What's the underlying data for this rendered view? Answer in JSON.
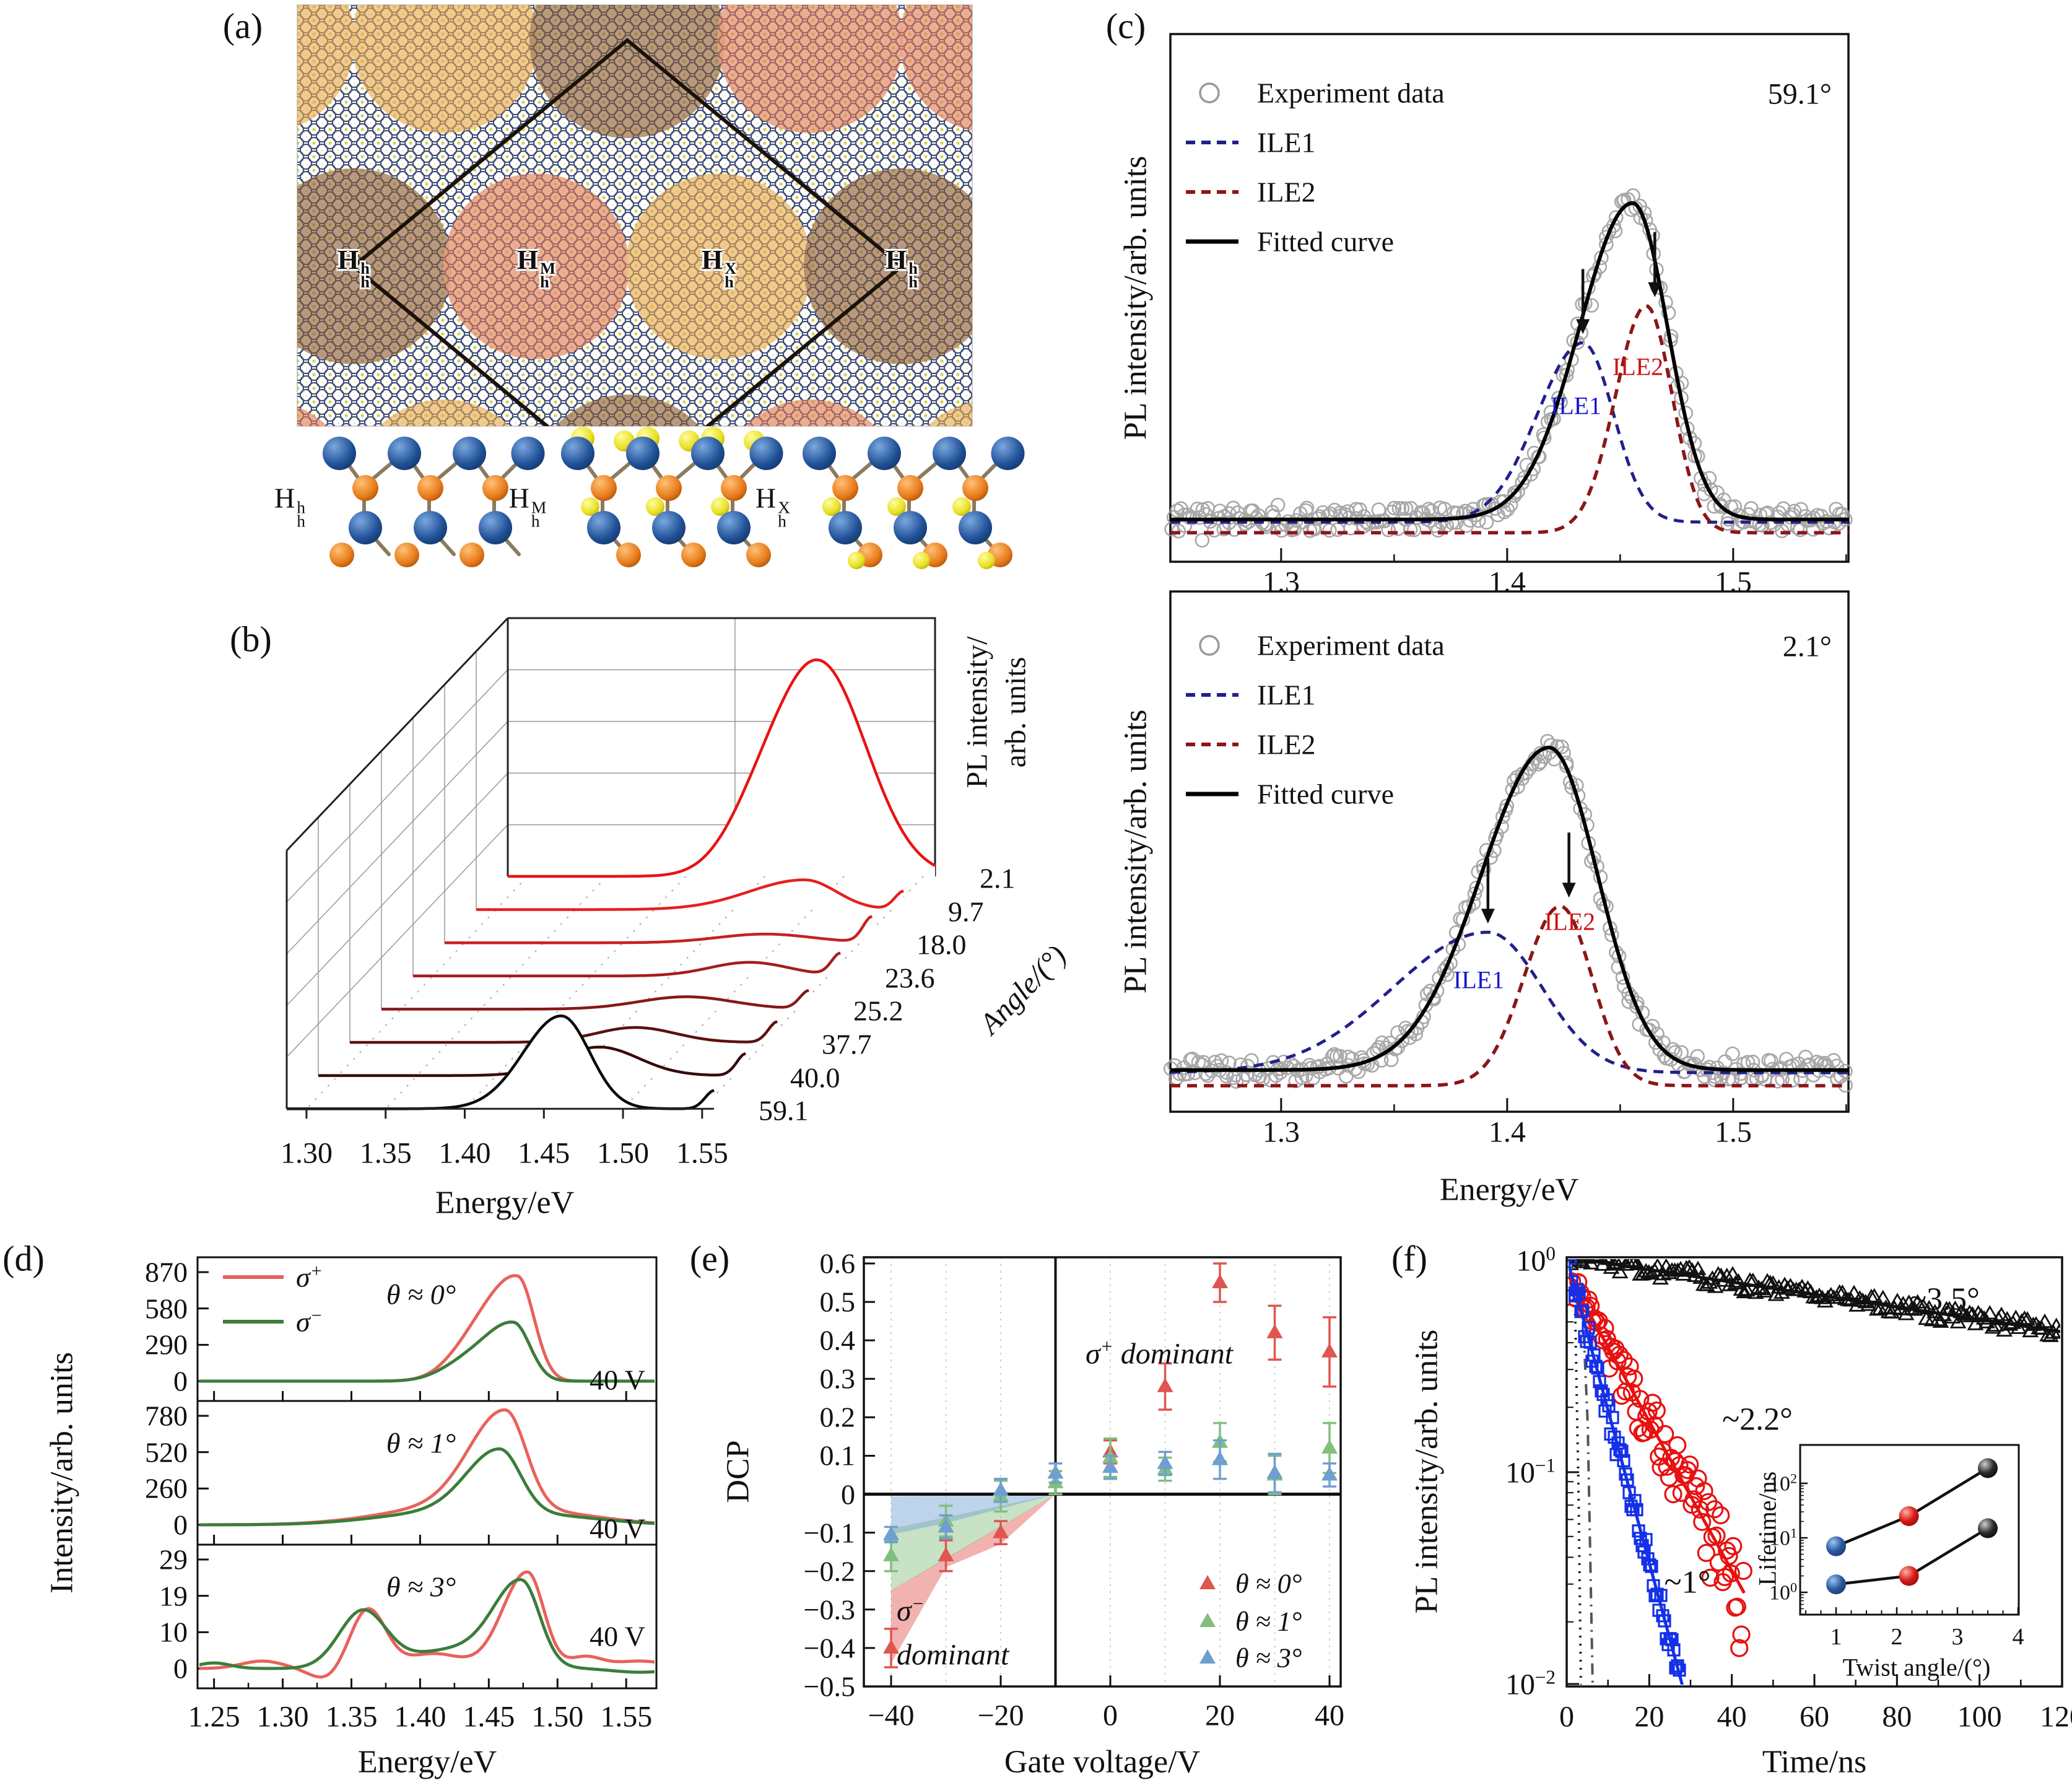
{
  "figure": {
    "panel_labels": [
      "(a)",
      "(b)",
      "(c)",
      "(d)",
      "(e)",
      "(f)"
    ]
  },
  "colors": {
    "brown": "#8a5a30",
    "salmon": "#e07a52",
    "gold": "#e8a84a",
    "ball_blue": "#1f5096",
    "ball_orange": "#e87a18",
    "ball_yellow": "#ece81f",
    "ile1": "#20208c",
    "ile2": "#8c1616",
    "fit": "#000000",
    "expt": "#9a9a9a",
    "sigma_plus": "#e8625c",
    "sigma_minus": "#3b7d3b",
    "dcp_red": "#e0554f",
    "dcp_green": "#82bf7e",
    "dcp_blue": "#6f9fd0",
    "decay_black": "#111111",
    "decay_red": "#e81010",
    "decay_blue": "#1430e8"
  },
  "panel_a": {
    "regions": [
      {
        "base": "H",
        "sup": "h",
        "sub": "h"
      },
      {
        "base": "H",
        "sup": "M",
        "sub": "h"
      },
      {
        "base": "H",
        "sup": "X",
        "sub": "h"
      },
      {
        "base": "H",
        "sup": "h",
        "sub": "h"
      }
    ],
    "structures": [
      {
        "base": "H",
        "sup": "h",
        "sub": "h"
      },
      {
        "base": "H",
        "sup": "M",
        "sub": "h"
      },
      {
        "base": "H",
        "sup": "X",
        "sub": "h"
      }
    ]
  },
  "chart_data": [
    {
      "id": "waterfall",
      "type": "line",
      "xlabel": "Energy/eV",
      "ylabel": "Angle/(°)",
      "zlabel_line1": "PL intensity/",
      "zlabel_line2": "arb. units",
      "x_ticks": [
        "1.30",
        "1.35",
        "1.40",
        "1.45",
        "1.50",
        "1.55"
      ],
      "xlim": [
        1.2875,
        1.5575
      ],
      "series": [
        {
          "angle": "2.1",
          "color": "#ea1212",
          "peaks": [
            {
              "A": 345,
              "c": 1.484,
              "s": 0.03
            },
            {
              "A": 40,
              "c": 1.442,
              "s": 0.02
            }
          ]
        },
        {
          "angle": "9.7",
          "color": "#e42020",
          "peaks": [
            {
              "A": 48,
              "c": 1.495,
              "sL": 0.035,
              "sR": 0.02
            },
            {
              "A": 30,
              "c": 1.558,
              "s": 0.006
            }
          ]
        },
        {
          "angle": "18.0",
          "color": "#c62020",
          "peaks": [
            {
              "A": 14,
              "c": 1.49,
              "s": 0.03
            },
            {
              "A": 42,
              "c": 1.558,
              "s": 0.006
            }
          ]
        },
        {
          "angle": "23.6",
          "color": "#a61c1c",
          "peaks": [
            {
              "A": 22,
              "c": 1.5,
              "s": 0.025
            },
            {
              "A": 36,
              "c": 1.558,
              "s": 0.006
            }
          ]
        },
        {
          "angle": "25.2",
          "color": "#871717",
          "peaks": [
            {
              "A": 20,
              "c": 1.48,
              "s": 0.03
            },
            {
              "A": 30,
              "c": 1.558,
              "s": 0.006
            }
          ]
        },
        {
          "angle": "37.7",
          "color": "#5c1010",
          "peaks": [
            {
              "A": 24,
              "c": 1.468,
              "s": 0.025
            },
            {
              "A": 34,
              "c": 1.558,
              "s": 0.006
            }
          ]
        },
        {
          "angle": "40.0",
          "color": "#380a0a",
          "peaks": [
            {
              "A": 46,
              "c": 1.465,
              "s": 0.025
            },
            {
              "A": 36,
              "c": 1.558,
              "s": 0.006
            }
          ]
        },
        {
          "angle": "59.1",
          "color": "#0a0a0a",
          "peaks": [
            {
              "A": 150,
              "c": 1.461,
              "sL": 0.024,
              "sR": 0.018
            },
            {
              "A": 30,
              "c": 1.558,
              "s": 0.006
            }
          ]
        }
      ]
    },
    {
      "id": "fit59",
      "type": "line",
      "angle_label": "59.1°",
      "ylabel": "PL intensity/arb. units",
      "legend": [
        "Experiment data",
        "ILE1",
        "ILE2",
        "Fitted curve"
      ],
      "x_ticks": [
        "1.3",
        "1.4",
        "1.5"
      ],
      "x_minor": [
        1.35,
        1.45,
        1.55
      ],
      "xlim": [
        1.251,
        1.551
      ],
      "baseline": 0.08,
      "ile2_base": 0.055,
      "fitted": [
        {
          "A": 0.6,
          "c": 1.4555,
          "sL": 0.0235,
          "sR": 0.0155
        }
      ],
      "ile1": [
        {
          "A": 0.34,
          "c": 1.4335,
          "sL": 0.02,
          "sR": 0.0135
        }
      ],
      "ile2": [
        {
          "A": 0.43,
          "c": 1.4615,
          "sL": 0.0135,
          "sR": 0.0115
        }
      ],
      "ann_ile1": "ILE1",
      "ann_ile2": "ILE2"
    },
    {
      "id": "fit21",
      "type": "line",
      "angle_label": "2.1°",
      "ylabel": "PL intensity/arb. units",
      "xlabel": "Energy/eV",
      "legend": [
        "Experiment data",
        "ILE1",
        "ILE2",
        "Fitted curve"
      ],
      "x_ticks": [
        "1.3",
        "1.4",
        "1.5"
      ],
      "x_minor": [
        1.35,
        1.45,
        1.55
      ],
      "xlim": [
        1.251,
        1.551
      ],
      "baseline": 0.08,
      "ile2_base": 0.05,
      "fitted": [
        {
          "A": 0.62,
          "c": 1.4185,
          "sL": 0.03,
          "sR": 0.0215
        }
      ],
      "ile1": [
        {
          "A": 0.27,
          "c": 1.3915,
          "sL": 0.042,
          "sR": 0.024
        }
      ],
      "ile2": [
        {
          "A": 0.345,
          "c": 1.4235,
          "sL": 0.016,
          "sR": 0.014
        }
      ],
      "ann_ile1": "ILE1",
      "ann_ile2": "ILE2"
    },
    {
      "id": "sigma",
      "type": "line",
      "ylabel": "Intensity/arb. units",
      "xlabel": "Energy/eV",
      "x_ticks": [
        "1.25",
        "1.30",
        "1.35",
        "1.40",
        "1.45",
        "1.50",
        "1.55"
      ],
      "xlim": [
        1.238,
        1.572
      ],
      "legend": [
        {
          "base": "σ",
          "sup": "+"
        },
        {
          "base": "σ",
          "sup": "−"
        }
      ],
      "panels": [
        {
          "theta": "θ ≈ 0°",
          "volt": "40 V",
          "y_ticks": [
            "870",
            "580",
            "290",
            "0"
          ],
          "ymax": 870,
          "plus": [
            {
              "A": 150,
              "c": 1.435,
              "s": 0.018
            },
            {
              "A": 820,
              "c": 1.471,
              "sL": 0.024,
              "sR": 0.012
            }
          ],
          "minus": [
            {
              "A": 100,
              "c": 1.43,
              "s": 0.018
            },
            {
              "A": 460,
              "c": 1.468,
              "sL": 0.022,
              "sR": 0.012
            }
          ]
        },
        {
          "theta": "θ ≈ 1°",
          "volt": "40 V",
          "y_ticks": [
            "780",
            "520",
            "260",
            "0"
          ],
          "ymax": 780,
          "plus": [
            {
              "A": 120,
              "c": 1.42,
              "s": 0.05
            },
            {
              "A": 700,
              "c": 1.462,
              "sL": 0.026,
              "sR": 0.015
            },
            {
              "A": 60,
              "c": 1.5,
              "s": 0.04
            }
          ],
          "minus": [
            {
              "A": 90,
              "c": 1.42,
              "s": 0.05
            },
            {
              "A": 450,
              "c": 1.458,
              "sL": 0.024,
              "sR": 0.015
            },
            {
              "A": 45,
              "c": 1.5,
              "s": 0.04
            }
          ]
        },
        {
          "theta": "θ ≈ 3°",
          "volt": "40 V",
          "y_ticks": [
            "29",
            "19",
            "10",
            "0"
          ],
          "ymax": 29,
          "plus": [
            {
              "A": 16,
              "c": 1.362,
              "s": 0.013
            },
            {
              "A": -3,
              "c": 1.332,
              "s": 0.012
            },
            {
              "A": 4,
              "c": 1.41,
              "s": 0.02
            },
            {
              "A": 26,
              "c": 1.478,
              "sL": 0.018,
              "sR": 0.012
            },
            {
              "A": 3,
              "c": 1.52,
              "s": 0.012
            },
            {
              "A": 2,
              "c": 1.285,
              "s": 0.015
            },
            {
              "A": 2,
              "c": 1.56,
              "s": 0.02
            }
          ],
          "minus": [
            {
              "A": 1.5,
              "c": 1.25,
              "s": 0.012
            },
            {
              "A": 15,
              "c": 1.358,
              "s": 0.017
            },
            {
              "A": 5,
              "c": 1.425,
              "s": 0.035
            },
            {
              "A": 22,
              "c": 1.474,
              "sL": 0.02,
              "sR": 0.013
            },
            {
              "A": -1,
              "c": 1.56,
              "s": 0.02
            }
          ]
        }
      ]
    },
    {
      "id": "dcp",
      "type": "scatter",
      "ylabel": "DCP",
      "xlabel": "Gate voltage/V",
      "x_ticks": [
        -40,
        -20,
        0,
        20,
        40
      ],
      "xlim": [
        -45,
        42
      ],
      "y_ticks": [
        0.6,
        0.5,
        0.4,
        0.3,
        0.2,
        0.1,
        0,
        -0.1,
        -0.2,
        -0.3,
        -0.4,
        -0.5
      ],
      "ylim": [
        -0.5,
        0.6
      ],
      "vline": -10,
      "label_plus": {
        "base": "σ",
        "sup": "+",
        "rest": " dominant"
      },
      "label_minus": {
        "base": "σ",
        "sup": "−"
      },
      "label_minus2": "dominant",
      "legend": [
        {
          "label": "θ ≈ 0°",
          "color": "#e0554f"
        },
        {
          "label": "θ ≈ 1°",
          "color": "#82bf7e"
        },
        {
          "label": "θ ≈ 3°",
          "color": "#6f9fd0"
        }
      ],
      "series": [
        {
          "name": "theta0",
          "color": "#e0554f",
          "points": [
            [
              -40,
              -0.4,
              0.05
            ],
            [
              -30,
              -0.16,
              0.04
            ],
            [
              -20,
              -0.1,
              0.03
            ],
            [
              0,
              0.11,
              0.03
            ],
            [
              10,
              0.28,
              0.06
            ],
            [
              20,
              0.55,
              0.05
            ],
            [
              30,
              0.42,
              0.07
            ],
            [
              40,
              0.37,
              0.09
            ]
          ]
        },
        {
          "name": "theta1",
          "color": "#82bf7e",
          "points": [
            [
              -40,
              -0.16,
              0.04
            ],
            [
              -30,
              -0.07,
              0.04
            ],
            [
              -20,
              -0.005,
              0.04
            ],
            [
              -10,
              0.03,
              0.03
            ],
            [
              0,
              0.095,
              0.05
            ],
            [
              10,
              0.065,
              0.03
            ],
            [
              20,
              0.135,
              0.05
            ],
            [
              30,
              0.05,
              0.05
            ],
            [
              40,
              0.12,
              0.065
            ]
          ]
        },
        {
          "name": "theta3",
          "color": "#6f9fd0",
          "points": [
            [
              -40,
              -0.105,
              0.02
            ],
            [
              -30,
              -0.085,
              0.03
            ],
            [
              -20,
              0.01,
              0.03
            ],
            [
              -10,
              0.055,
              0.025
            ],
            [
              0,
              0.07,
              0.03
            ],
            [
              10,
              0.08,
              0.03
            ],
            [
              20,
              0.09,
              0.05
            ],
            [
              30,
              0.055,
              0.05
            ],
            [
              40,
              0.05,
              0.03
            ]
          ]
        }
      ],
      "shade": [
        {
          "color": "#e0554f",
          "pts": [
            [
              -40,
              -0.25
            ],
            [
              -10,
              0
            ],
            [
              -20,
              -0.13
            ],
            [
              -30,
              -0.19
            ],
            [
              -40,
              -0.44
            ]
          ]
        },
        {
          "color": "#82bf7e",
          "pts": [
            [
              -40,
              -0.09
            ],
            [
              -10,
              0
            ],
            [
              -30,
              -0.17
            ],
            [
              -40,
              -0.25
            ]
          ]
        },
        {
          "color": "#6f9fd0",
          "pts": [
            [
              -40,
              -0.005
            ],
            [
              -10,
              0
            ],
            [
              -30,
              -0.075
            ],
            [
              -40,
              -0.105
            ]
          ]
        }
      ]
    },
    {
      "id": "decay",
      "type": "scatter",
      "ylabel": "PL intensity/arb. units",
      "xlabel": "Time/ns",
      "x_ticks": [
        0,
        20,
        40,
        60,
        80,
        100,
        120
      ],
      "xlim": [
        0,
        120
      ],
      "y_ticks": [
        {
          "b": "10",
          "e": "0"
        },
        {
          "b": "10",
          "e": "−1"
        },
        {
          "b": "10",
          "e": "−2"
        }
      ],
      "series": [
        {
          "label": "~3.5°",
          "tau": 150,
          "I0": 1.0,
          "tmax": 120,
          "step": 0.7,
          "noise": 0.09,
          "marker": "triangle",
          "color": "#111111"
        },
        {
          "label": "~2.2°",
          "tau": 12.5,
          "I0": 0.85,
          "tmax": 43,
          "step": 0.5,
          "noise": 0.28,
          "marker": "circle",
          "color": "#e81010"
        },
        {
          "label": "~1°",
          "tau": 6.1,
          "I0": 1.0,
          "tmax": 31,
          "step": 0.45,
          "noise": 0.14,
          "marker": "square",
          "color": "#1430e8"
        }
      ],
      "inset": {
        "xlabel": "Twist angle/(°)",
        "ylabel": "Lifetime/ns",
        "x_ticks": [
          1,
          2,
          3,
          4
        ],
        "y_ticks": [
          {
            "b": "10",
            "e": "2"
          },
          {
            "b": "10",
            "e": "1"
          },
          {
            "b": "10",
            "e": "0"
          }
        ],
        "series": [
          {
            "points": [
              [
                1,
                7
              ],
              [
                2.2,
                25
              ],
              [
                3.5,
                190
              ]
            ]
          },
          {
            "points": [
              [
                1,
                1.4
              ],
              [
                2.2,
                2.0
              ],
              [
                3.5,
                15
              ]
            ]
          }
        ],
        "point_colors": [
          "#2244ee",
          "#dd1111",
          "#111111"
        ]
      }
    }
  ]
}
